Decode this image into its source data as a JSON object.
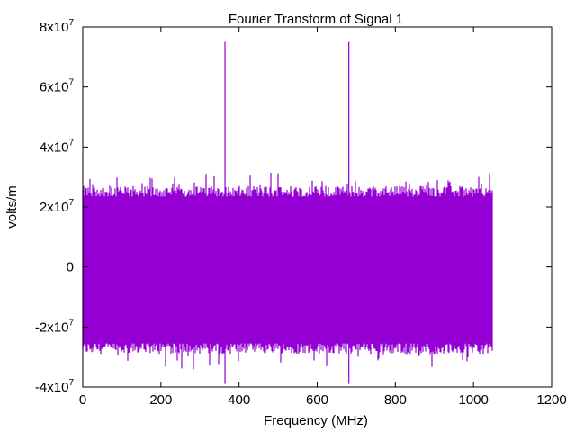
{
  "chart_data": {
    "type": "line",
    "title": "Fourier Transform of Signal 1",
    "xlabel": "Frequency (MHz)",
    "ylabel": "volts/m",
    "xlim": [
      0,
      1200
    ],
    "ylim": [
      -40000000,
      80000000
    ],
    "x_ticks": [
      {
        "value": 0,
        "label": "0"
      },
      {
        "value": 200,
        "label": "200"
      },
      {
        "value": 400,
        "label": "400"
      },
      {
        "value": 600,
        "label": "600"
      },
      {
        "value": 800,
        "label": "800"
      },
      {
        "value": 1000,
        "label": "1000"
      },
      {
        "value": 1200,
        "label": "1200"
      }
    ],
    "y_ticks": [
      {
        "value": -40000000,
        "mantissa": "-4x10",
        "exp": "7"
      },
      {
        "value": -20000000,
        "mantissa": "-2x10",
        "exp": "7"
      },
      {
        "value": 0,
        "mantissa": "0",
        "exp": ""
      },
      {
        "value": 20000000,
        "mantissa": "2x10",
        "exp": "7"
      },
      {
        "value": 40000000,
        "mantissa": "4x10",
        "exp": "7"
      },
      {
        "value": 60000000,
        "mantissa": "6x10",
        "exp": "7"
      },
      {
        "value": 80000000,
        "mantissa": "8x10",
        "exp": "7"
      }
    ],
    "series_color": "#9400d3",
    "series": [
      {
        "data_range_x": [
          0,
          1048
        ],
        "noise_band": [
          -27000000,
          25000000
        ],
        "peaks": [
          {
            "x": 364,
            "y": 75000000,
            "y_min": -39000000
          },
          {
            "x": 681,
            "y": 75000000,
            "y_min": -39000000
          }
        ]
      }
    ],
    "grid": false,
    "legend": "none"
  }
}
